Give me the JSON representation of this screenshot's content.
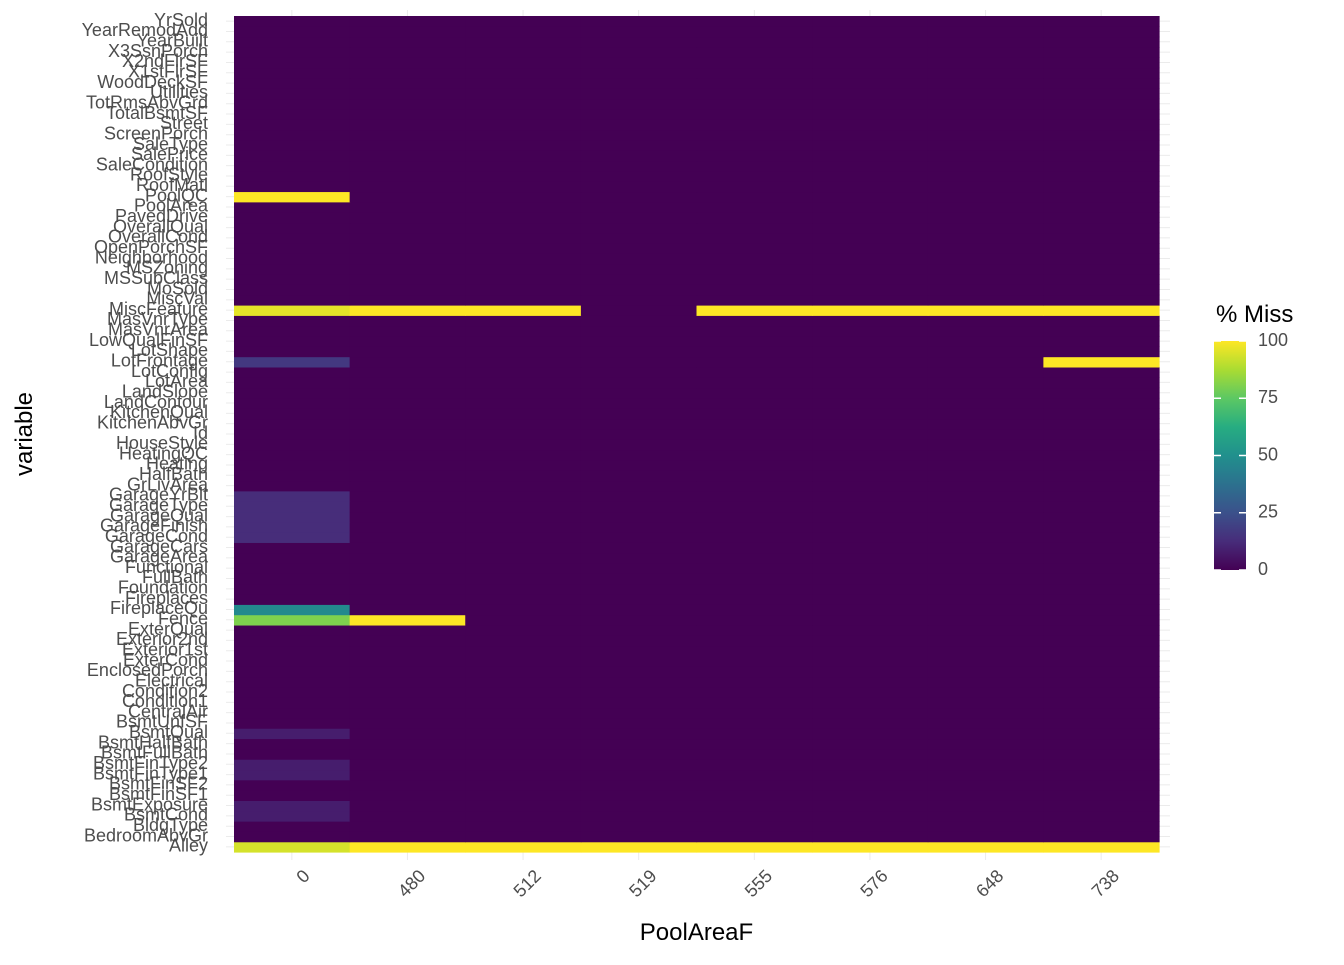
{
  "chart_data": {
    "type": "heatmap",
    "title": "",
    "xlabel": "PoolAreaF",
    "ylabel": "variable",
    "x_categories": [
      "0",
      "480",
      "512",
      "519",
      "555",
      "576",
      "648",
      "738"
    ],
    "y_categories": [
      "Alley",
      "BedroomAbvGr",
      "BldgType",
      "BsmtCond",
      "BsmtExposure",
      "BsmtFinSF1",
      "BsmtFinSF2",
      "BsmtFinType1",
      "BsmtFinType2",
      "BsmtFullBath",
      "BsmtHalfBath",
      "BsmtQual",
      "BsmtUnfSF",
      "CentralAir",
      "Condition1",
      "Condition2",
      "Electrical",
      "EnclosedPorch",
      "ExterCond",
      "Exterior1st",
      "Exterior2nd",
      "ExterQual",
      "Fence",
      "FireplaceQu",
      "Fireplaces",
      "Foundation",
      "FullBath",
      "Functional",
      "GarageArea",
      "GarageCars",
      "GarageCond",
      "GarageFinish",
      "GarageQual",
      "GarageType",
      "GarageYrBlt",
      "GrLivArea",
      "HalfBath",
      "Heating",
      "HeatingQC",
      "HouseStyle",
      "Id",
      "KitchenAbvGr",
      "KitchenQual",
      "LandContour",
      "LandSlope",
      "LotArea",
      "LotConfig",
      "LotFrontage",
      "LotShape",
      "LowQualFinSF",
      "MasVnrArea",
      "MasVnrType",
      "MiscFeature",
      "MiscVal",
      "MoSold",
      "MSSubClass",
      "MSZoning",
      "Neighborhood",
      "OpenPorchSF",
      "OverallCond",
      "OverallQual",
      "PavedDrive",
      "PoolArea",
      "PoolQC",
      "RoofMatl",
      "RoofStyle",
      "SaleCondition",
      "SalePrice",
      "SaleType",
      "ScreenPorch",
      "Street",
      "TotalBsmtSF",
      "TotRmsAbvGrd",
      "Utilities",
      "WoodDeckSF",
      "X1stFlrSF",
      "X2ndFlrSF",
      "X3SsnPorch",
      "YearBuilt",
      "YearRemodAdd",
      "YrSold"
    ],
    "missing_percent": {
      "Alley": [
        93.8,
        100,
        100,
        100,
        100,
        100,
        100,
        100
      ],
      "BsmtCond": [
        8.1,
        0,
        0,
        0,
        0,
        0,
        0,
        0
      ],
      "BsmtExposure": [
        8.2,
        0,
        0,
        0,
        0,
        0,
        0,
        0
      ],
      "BsmtFinType1": [
        8.1,
        0,
        0,
        0,
        0,
        0,
        0,
        0
      ],
      "BsmtFinType2": [
        8.2,
        0,
        0,
        0,
        0,
        0,
        0,
        0
      ],
      "BsmtQual": [
        8.1,
        0,
        0,
        0,
        0,
        0,
        0,
        0
      ],
      "Fence": [
        80.4,
        100,
        0,
        0,
        0,
        0,
        0,
        0
      ],
      "FireplaceQu": [
        47.3,
        0,
        0,
        0,
        0,
        0,
        0,
        0
      ],
      "GarageCond": [
        12.8,
        0,
        0,
        0,
        0,
        0,
        0,
        0
      ],
      "GarageFinish": [
        12.8,
        0,
        0,
        0,
        0,
        0,
        0,
        0
      ],
      "GarageQual": [
        12.8,
        0,
        0,
        0,
        0,
        0,
        0,
        0
      ],
      "GarageType": [
        12.8,
        0,
        0,
        0,
        0,
        0,
        0,
        0
      ],
      "GarageYrBlt": [
        12.8,
        0,
        0,
        0,
        0,
        0,
        0,
        0
      ],
      "LotFrontage": [
        16.7,
        0,
        0,
        0,
        0,
        0,
        0,
        100
      ],
      "MiscFeature": [
        96.4,
        100,
        100,
        0,
        100,
        100,
        100,
        100
      ],
      "PoolQC": [
        100,
        0,
        0,
        0,
        0,
        0,
        0,
        0
      ]
    },
    "default_value": 0,
    "legend": {
      "title": "% Miss",
      "position": "right",
      "ticks": [
        0,
        25,
        50,
        75,
        100
      ],
      "range": [
        0,
        100
      ],
      "colormap": "viridis"
    },
    "colors": {
      "low": "#440154",
      "mid": "#21908C",
      "high": "#FDE725",
      "axis_text": "#4D4D4D",
      "grid": "#EBEBEB"
    },
    "grid": true
  }
}
